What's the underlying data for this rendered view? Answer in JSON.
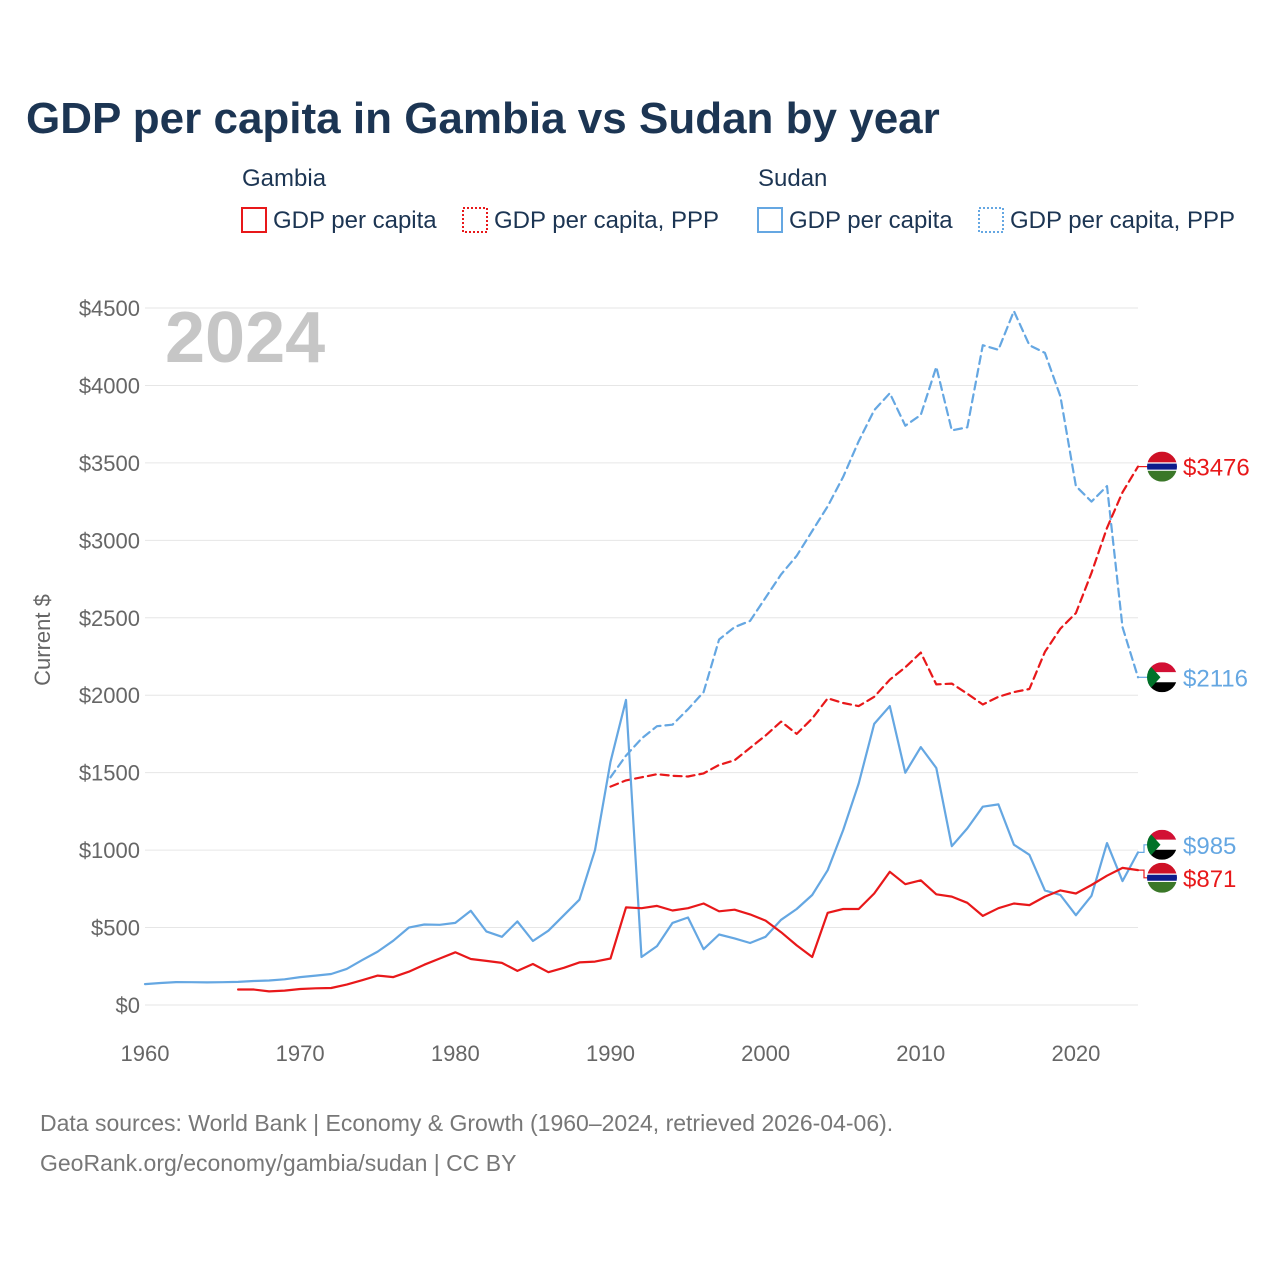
{
  "title": "GDP per capita in Gambia vs Sudan by year",
  "colors": {
    "gambia": "#e8181a",
    "sudan": "#65a7e2",
    "grid": "#e6e6e6",
    "axis_text": "#666666"
  },
  "legend": {
    "groups": [
      {
        "name": "Gambia",
        "items": [
          {
            "label": "GDP per capita",
            "style": "solid",
            "series": "gambia_gdp"
          },
          {
            "label": "GDP per capita, PPP",
            "style": "dotted",
            "series": "gambia_ppp"
          }
        ]
      },
      {
        "name": "Sudan",
        "items": [
          {
            "label": "GDP per capita",
            "style": "solid",
            "series": "sudan_gdp"
          },
          {
            "label": "GDP per capita, PPP",
            "style": "dotted",
            "series": "sudan_ppp"
          }
        ]
      }
    ]
  },
  "year_label": "2024",
  "source_lines": [
    "Data sources: World Bank | Economy & Growth (1960–2024, retrieved 2026-04-06).",
    "GeoRank.org/economy/gambia/sudan | CC BY"
  ],
  "chart_data": {
    "type": "line",
    "title": "GDP per capita in Gambia vs Sudan by year",
    "xlabel": "",
    "ylabel": "Current $",
    "xlim": [
      1960,
      2024
    ],
    "ylim": [
      0,
      4500
    ],
    "x_ticks": [
      1960,
      1970,
      1980,
      1990,
      2000,
      2010,
      2020
    ],
    "x_tick_labels": [
      "1960",
      "1970",
      "1980",
      "1990",
      "2000",
      "2010",
      "2020"
    ],
    "y_ticks": [
      0,
      500,
      1000,
      1500,
      2000,
      2500,
      3000,
      3500,
      4000,
      4500
    ],
    "y_tick_labels": [
      "$0",
      "$500",
      "$1000",
      "$1500",
      "$2000",
      "$2500",
      "$3000",
      "$3500",
      "$4000",
      "$4500"
    ],
    "grid": true,
    "series": [
      {
        "id": "sudan_gdp",
        "name": "Sudan GDP per capita",
        "country": "Sudan",
        "color": "#65a7e2",
        "dash": "solid",
        "end_label": "$985",
        "x": [
          1960,
          1961,
          1962,
          1963,
          1964,
          1965,
          1966,
          1967,
          1968,
          1969,
          1970,
          1971,
          1972,
          1973,
          1974,
          1975,
          1976,
          1977,
          1978,
          1979,
          1980,
          1981,
          1982,
          1983,
          1984,
          1985,
          1986,
          1987,
          1988,
          1989,
          1990,
          1991,
          1992,
          1993,
          1994,
          1995,
          1996,
          1997,
          1998,
          1999,
          2000,
          2001,
          2002,
          2003,
          2004,
          2005,
          2006,
          2007,
          2008,
          2009,
          2010,
          2011,
          2012,
          2013,
          2014,
          2015,
          2016,
          2017,
          2018,
          2019,
          2020,
          2021,
          2022,
          2023,
          2024
        ],
        "y": [
          135,
          142,
          148,
          147,
          146,
          147,
          149,
          155,
          158,
          166,
          180,
          190,
          200,
          233,
          290,
          345,
          415,
          500,
          520,
          518,
          530,
          608,
          475,
          440,
          540,
          413,
          480,
          580,
          680,
          1000,
          1570,
          1970,
          310,
          380,
          530,
          565,
          360,
          455,
          430,
          400,
          440,
          550,
          620,
          710,
          870,
          1130,
          1430,
          1815,
          1930,
          1500,
          1665,
          1530,
          1025,
          1140,
          1280,
          1295,
          1035,
          970,
          740,
          710,
          580,
          705,
          1045,
          800,
          985
        ]
      },
      {
        "id": "gambia_gdp",
        "name": "Gambia GDP per capita",
        "country": "Gambia",
        "color": "#e8181a",
        "dash": "solid",
        "end_label": "$871",
        "x": [
          1966,
          1967,
          1968,
          1969,
          1970,
          1971,
          1972,
          1973,
          1974,
          1975,
          1976,
          1977,
          1978,
          1979,
          1980,
          1981,
          1982,
          1983,
          1984,
          1985,
          1986,
          1987,
          1988,
          1989,
          1990,
          1991,
          1992,
          1993,
          1994,
          1995,
          1996,
          1997,
          1998,
          1999,
          2000,
          2001,
          2002,
          2003,
          2004,
          2005,
          2006,
          2007,
          2008,
          2009,
          2010,
          2011,
          2012,
          2013,
          2014,
          2015,
          2016,
          2017,
          2018,
          2019,
          2020,
          2021,
          2022,
          2023,
          2024
        ],
        "y": [
          100,
          100,
          88,
          93,
          103,
          108,
          110,
          132,
          160,
          190,
          180,
          215,
          260,
          300,
          340,
          297,
          285,
          272,
          220,
          265,
          212,
          240,
          275,
          280,
          300,
          630,
          625,
          640,
          610,
          625,
          655,
          605,
          615,
          585,
          545,
          470,
          385,
          310,
          595,
          620,
          620,
          720,
          860,
          780,
          805,
          715,
          700,
          660,
          575,
          625,
          655,
          645,
          700,
          740,
          720,
          775,
          835,
          885,
          871
        ]
      },
      {
        "id": "sudan_ppp",
        "name": "Sudan GDP per capita, PPP",
        "country": "Sudan",
        "color": "#65a7e2",
        "dash": "dashed",
        "end_label": "$2116",
        "x": [
          1990,
          1991,
          1992,
          1993,
          1994,
          1995,
          1996,
          1997,
          1998,
          1999,
          2000,
          2001,
          2002,
          2003,
          2004,
          2005,
          2006,
          2007,
          2008,
          2009,
          2010,
          2011,
          2012,
          2013,
          2014,
          2015,
          2016,
          2017,
          2018,
          2019,
          2020,
          2021,
          2022,
          2023,
          2024
        ],
        "y": [
          1470,
          1610,
          1720,
          1800,
          1810,
          1910,
          2020,
          2360,
          2440,
          2480,
          2630,
          2780,
          2900,
          3060,
          3220,
          3410,
          3640,
          3840,
          3950,
          3740,
          3810,
          4120,
          3710,
          3730,
          4260,
          4230,
          4480,
          4260,
          4210,
          3930,
          3350,
          3250,
          3350,
          2440,
          2116
        ]
      },
      {
        "id": "gambia_ppp",
        "name": "Gambia GDP per capita, PPP",
        "country": "Gambia",
        "color": "#e8181a",
        "dash": "dashed",
        "end_label": "$3476",
        "x": [
          1990,
          1991,
          1992,
          1993,
          1994,
          1995,
          1996,
          1997,
          1998,
          1999,
          2000,
          2001,
          2002,
          2003,
          2004,
          2005,
          2006,
          2007,
          2008,
          2009,
          2010,
          2011,
          2012,
          2013,
          2014,
          2015,
          2016,
          2017,
          2018,
          2019,
          2020,
          2021,
          2022,
          2023,
          2024
        ],
        "y": [
          1410,
          1450,
          1470,
          1490,
          1480,
          1475,
          1495,
          1550,
          1580,
          1660,
          1740,
          1830,
          1750,
          1850,
          1980,
          1950,
          1930,
          1990,
          2100,
          2180,
          2275,
          2070,
          2075,
          2010,
          1940,
          1990,
          2020,
          2040,
          2280,
          2430,
          2530,
          2790,
          3080,
          3310,
          3476
        ]
      }
    ]
  }
}
